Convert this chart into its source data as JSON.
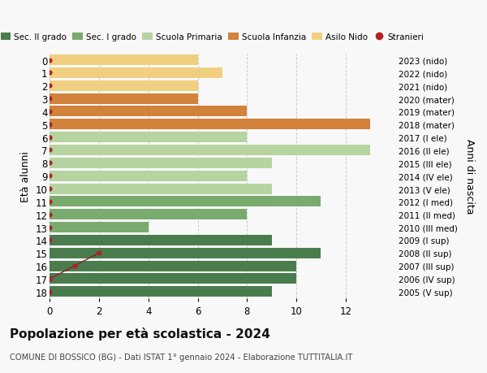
{
  "ages": [
    18,
    17,
    16,
    15,
    14,
    13,
    12,
    11,
    10,
    9,
    8,
    7,
    6,
    5,
    4,
    3,
    2,
    1,
    0
  ],
  "years": [
    "2005 (V sup)",
    "2006 (IV sup)",
    "2007 (III sup)",
    "2008 (II sup)",
    "2009 (I sup)",
    "2010 (III med)",
    "2011 (II med)",
    "2012 (I med)",
    "2013 (V ele)",
    "2014 (IV ele)",
    "2015 (III ele)",
    "2016 (II ele)",
    "2017 (I ele)",
    "2018 (mater)",
    "2019 (mater)",
    "2020 (mater)",
    "2021 (nido)",
    "2022 (nido)",
    "2023 (nido)"
  ],
  "values": [
    9,
    10,
    10,
    11,
    9,
    4,
    8,
    11,
    9,
    8,
    9,
    13,
    8,
    13,
    8,
    6,
    6,
    7,
    6
  ],
  "colors": [
    "#4a7c4e",
    "#4a7c4e",
    "#4a7c4e",
    "#4a7c4e",
    "#4a7c4e",
    "#7aab6e",
    "#7aab6e",
    "#7aab6e",
    "#b5d4a0",
    "#b5d4a0",
    "#b5d4a0",
    "#b5d4a0",
    "#b5d4a0",
    "#d2823a",
    "#d2823a",
    "#d2823a",
    "#f0d080",
    "#f0d080",
    "#f0d080"
  ],
  "stranieri_by_age": {
    "18": 0,
    "17": 0,
    "16": 1,
    "15": 2,
    "14": 0,
    "13": 0,
    "12": 0,
    "11": 0,
    "10": 0,
    "9": 0,
    "8": 0,
    "7": 0,
    "6": 0,
    "5": 0,
    "4": 0,
    "3": 0,
    "2": 0,
    "1": 0,
    "0": 0
  },
  "stranieri_line_ages": [
    17,
    16,
    15
  ],
  "legend_labels": [
    "Sec. II grado",
    "Sec. I grado",
    "Scuola Primaria",
    "Scuola Infanzia",
    "Asilo Nido",
    "Stranieri"
  ],
  "legend_colors": [
    "#4a7c4e",
    "#7aab6e",
    "#b5d4a0",
    "#d2823a",
    "#f0d080",
    "#b22222"
  ],
  "title": "Popolazione per età scolastica - 2024",
  "subtitle": "COMUNE DI BOSSICO (BG) - Dati ISTAT 1° gennaio 2024 - Elaborazione TUTTITALIA.IT",
  "ylabel_left": "Età alunni",
  "ylabel_right": "Anni di nascita",
  "xlim": [
    0,
    14
  ],
  "xticks": [
    0,
    2,
    4,
    6,
    8,
    10,
    12
  ],
  "bg_color": "#f8f8f8",
  "grid_color": "#cccccc",
  "bar_height": 0.82
}
